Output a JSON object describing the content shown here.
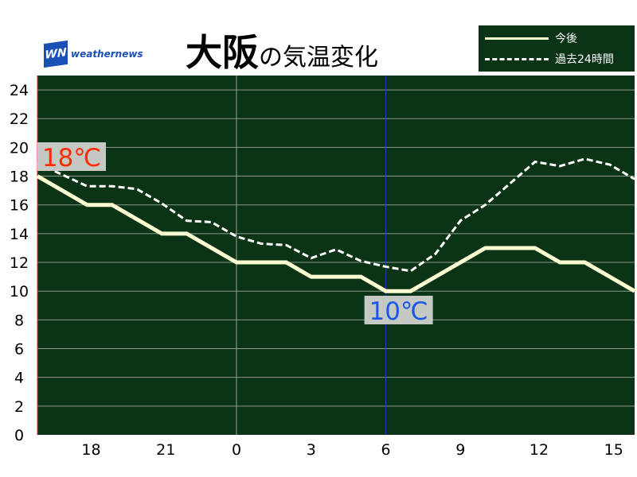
{
  "title": {
    "city": "大阪",
    "suffix": "の気温変化"
  },
  "logo": {
    "mark": "WN",
    "text": "weathernews"
  },
  "legend": {
    "forecast": "今後",
    "past": "過去24時間"
  },
  "colors": {
    "plot_bg": "#0b3316",
    "forecast": "#fdfbd2",
    "past": "#ffffff",
    "max_label": "#ff2a00",
    "min_label": "#1a56e8",
    "now_line": "#1a3fb0"
  },
  "chart_data": {
    "type": "line",
    "x_hours": [
      16,
      17,
      18,
      19,
      20,
      21,
      22,
      23,
      24,
      25,
      26,
      27,
      28,
      29,
      30,
      31,
      32,
      33,
      34,
      35,
      36,
      37,
      38,
      39,
      40
    ],
    "xtick_labels": [
      {
        "x": 18,
        "label": "18"
      },
      {
        "x": 21,
        "label": "21"
      },
      {
        "x": 24,
        "label": "0"
      },
      {
        "x": 27,
        "label": "3"
      },
      {
        "x": 30,
        "label": "6"
      },
      {
        "x": 33,
        "label": "9"
      },
      {
        "x": 36,
        "label": "12"
      },
      {
        "x": 39,
        "label": "15"
      }
    ],
    "ylim": [
      0,
      25
    ],
    "yticks": [
      0,
      2,
      4,
      6,
      8,
      10,
      12,
      14,
      16,
      18,
      20,
      22,
      24
    ],
    "grid": true,
    "legend_position": "top-right",
    "series": [
      {
        "name": "今後",
        "style": "solid",
        "values": [
          18,
          17,
          16,
          16,
          15,
          14,
          14,
          13,
          12,
          12,
          12,
          11,
          11,
          11,
          10,
          10,
          11,
          12,
          13,
          13,
          13,
          12,
          12,
          11,
          10
        ]
      },
      {
        "name": "過去24時間",
        "style": "dashed",
        "values": [
          18.9,
          18.1,
          17.3,
          17.3,
          17.1,
          16.1,
          14.9,
          14.8,
          13.8,
          13.3,
          13.2,
          12.3,
          12.9,
          12.1,
          11.7,
          11.4,
          12.6,
          14.9,
          16.0,
          17.5,
          19.0,
          18.7,
          19.2,
          18.8,
          17.8
        ]
      }
    ],
    "annotations": [
      {
        "label": "18℃",
        "kind": "max"
      },
      {
        "label": "10℃",
        "kind": "min"
      }
    ]
  }
}
